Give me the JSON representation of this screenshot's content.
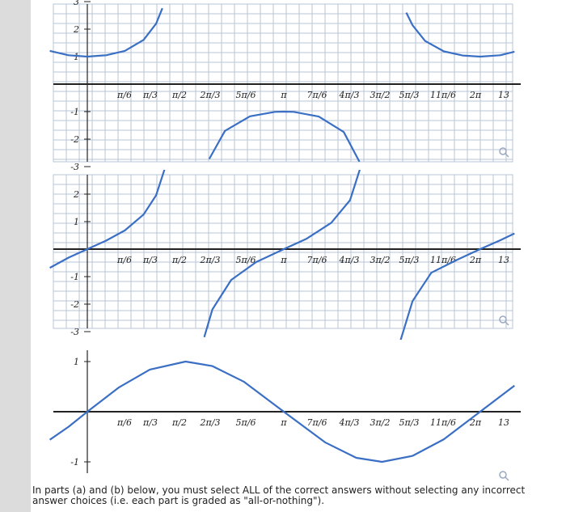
{
  "footer": {
    "text": "In parts (a) and (b) below, you must select ALL of the correct answers without selecting any incorrect answer choices (i.e. each part is graded as \"all-or-nothing\")."
  },
  "colors": {
    "curve": "#3a6fc4",
    "grid": "#b8c4d8",
    "axis": "#222222",
    "background": "#ffffff"
  },
  "icons": {
    "zoom": "magnifier-icon"
  },
  "chart_data": [
    {
      "type": "line",
      "title": "",
      "xlabel": "",
      "ylabel": "",
      "x_tick_labels": [
        "π/6",
        "π/3",
        "π/2",
        "2π/3",
        "5π/6",
        "π",
        "7π/6",
        "4π/3",
        "3π/2",
        "5π/3",
        "11π/6",
        "2π",
        "13"
      ],
      "y_tick_labels": [
        "3",
        "2",
        "1",
        "-1",
        "-2",
        "-3"
      ],
      "xlim": [
        -0.6,
        6.83
      ],
      "ylim": [
        -3.3,
        3.3
      ],
      "grid": true,
      "series": [
        {
          "function": "sec(x)",
          "x": [
            -0.6,
            -0.3,
            0,
            0.3,
            0.6,
            0.9,
            1.1,
            1.2
          ],
          "y": [
            1.21,
            1.05,
            1.0,
            1.05,
            1.21,
            1.61,
            2.2,
            2.76
          ]
        },
        {
          "function": "sec(x)",
          "x": [
            1.95,
            2.2,
            2.6,
            3.0,
            3.14159,
            3.3,
            3.7,
            4.1,
            4.35
          ],
          "y": [
            -2.72,
            -1.7,
            -1.17,
            -1.01,
            -1.0,
            -1.01,
            -1.18,
            -1.74,
            -2.82
          ]
        },
        {
          "function": "sec(x)",
          "x": [
            5.1,
            5.2,
            5.4,
            5.7,
            6.0,
            6.28,
            6.6,
            6.83
          ],
          "y": [
            2.6,
            2.14,
            1.57,
            1.19,
            1.04,
            1.0,
            1.05,
            1.18
          ]
        }
      ]
    },
    {
      "type": "line",
      "title": "",
      "xlabel": "",
      "ylabel": "",
      "x_tick_labels": [
        "π/6",
        "π/3",
        "π/2",
        "2π/3",
        "5π/6",
        "π",
        "7π/6",
        "4π/3",
        "3π/2",
        "5π/3",
        "11π/6",
        "2π",
        "13"
      ],
      "y_tick_labels": [
        "3",
        "2",
        "1",
        "-1",
        "-2",
        "-3"
      ],
      "xlim": [
        -0.6,
        6.83
      ],
      "ylim": [
        -3.3,
        3.3
      ],
      "grid": true,
      "series": [
        {
          "function": "tan(x)",
          "x": [
            -0.6,
            -0.3,
            0,
            0.3,
            0.6,
            0.9,
            1.1,
            1.25
          ],
          "y": [
            -0.68,
            -0.31,
            0,
            0.31,
            0.68,
            1.26,
            1.96,
            3.01
          ]
        },
        {
          "function": "tan(x)",
          "x": [
            1.87,
            2.0,
            2.3,
            2.7,
            3.14159,
            3.5,
            3.9,
            4.2,
            4.43
          ],
          "y": [
            -3.2,
            -2.19,
            -1.12,
            -0.47,
            0,
            0.37,
            0.96,
            1.78,
            3.42
          ]
        },
        {
          "function": "tan(x)",
          "x": [
            5.0,
            5.2,
            5.5,
            5.9,
            6.28,
            6.6,
            6.83
          ],
          "y": [
            -3.38,
            -1.89,
            -0.86,
            -0.4,
            0,
            0.32,
            0.57
          ]
        }
      ]
    },
    {
      "type": "line",
      "title": "",
      "xlabel": "",
      "ylabel": "",
      "x_tick_labels": [
        "π/6",
        "π/3",
        "π/2",
        "2π/3",
        "5π/6",
        "π",
        "7π/6",
        "4π/3",
        "3π/2",
        "5π/3",
        "11π/6",
        "2π",
        "13"
      ],
      "y_tick_labels": [
        "1",
        "-1"
      ],
      "xlim": [
        -0.6,
        6.83
      ],
      "ylim": [
        -1.2,
        1.2
      ],
      "grid": false,
      "series": [
        {
          "function": "sin(x)",
          "x": [
            -0.6,
            -0.3,
            0,
            0.5,
            1.0,
            1.5708,
            2.0,
            2.5,
            3.14159,
            3.8,
            4.3,
            4.7124,
            5.2,
            5.7,
            6.28,
            6.83
          ],
          "y": [
            -0.56,
            -0.3,
            0,
            0.48,
            0.84,
            1.0,
            0.91,
            0.6,
            0,
            -0.61,
            -0.92,
            -1.0,
            -0.88,
            -0.55,
            0,
            0.52
          ]
        }
      ]
    }
  ]
}
